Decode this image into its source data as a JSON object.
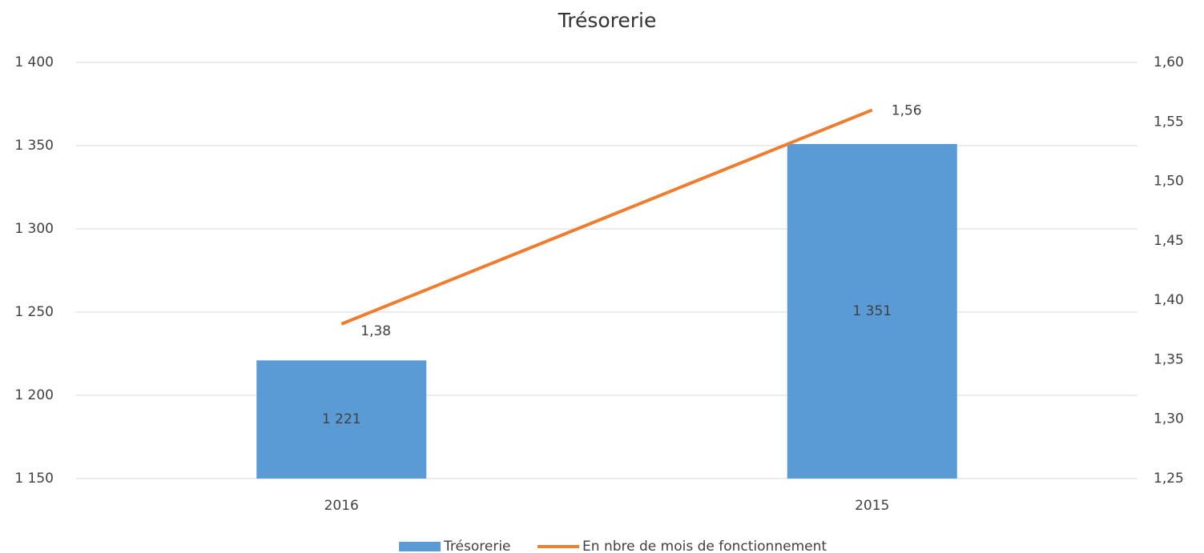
{
  "chart_data": {
    "type": "bar",
    "title": "Trésorerie",
    "categories": [
      "2016",
      "2015"
    ],
    "series": [
      {
        "name": "Trésorerie",
        "type": "bar",
        "color": "#5b9bd5",
        "values": [
          1221,
          1351
        ],
        "value_labels": [
          "1 221",
          "1 351"
        ]
      },
      {
        "name": "En nbre de mois de fonctionnement",
        "type": "line",
        "axis": "y2",
        "color": "#ed7d31",
        "values": [
          1.38,
          1.56
        ],
        "value_labels": [
          "1,38",
          "1,56"
        ]
      }
    ],
    "ylim": [
      1150,
      1400
    ],
    "yticks": [
      {
        "value": 1150,
        "label": "1 150"
      },
      {
        "value": 1200,
        "label": "1 200"
      },
      {
        "value": 1250,
        "label": "1 250"
      },
      {
        "value": 1300,
        "label": "1 300"
      },
      {
        "value": 1350,
        "label": "1 350"
      },
      {
        "value": 1400,
        "label": "1 400"
      }
    ],
    "y2lim": [
      1.25,
      1.6
    ],
    "y2ticks": [
      {
        "value": 1.25,
        "label": "1,25"
      },
      {
        "value": 1.3,
        "label": "1,30"
      },
      {
        "value": 1.35,
        "label": "1,35"
      },
      {
        "value": 1.4,
        "label": "1,40"
      },
      {
        "value": 1.45,
        "label": "1,45"
      },
      {
        "value": 1.5,
        "label": "1,50"
      },
      {
        "value": 1.55,
        "label": "1,55"
      },
      {
        "value": 1.6,
        "label": "1,60"
      }
    ],
    "grid": true,
    "legend": "bottom"
  }
}
